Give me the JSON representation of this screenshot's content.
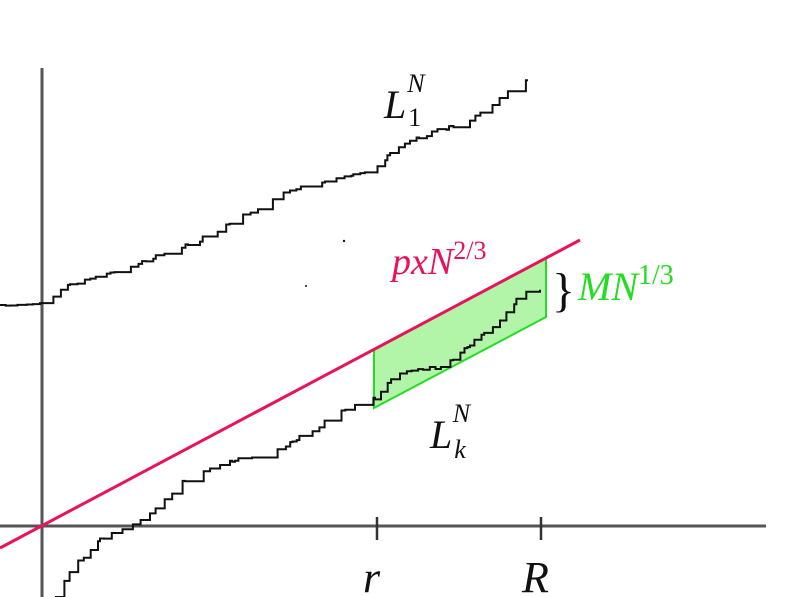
{
  "labels": {
    "top_curve": {
      "base": "L",
      "sub": "1",
      "sup": "N"
    },
    "line": {
      "base": "pxN",
      "sup": "2/3"
    },
    "window": {
      "brace": "}",
      "base": "MN",
      "sup": "1/3"
    },
    "bottom_curve": {
      "base": "L",
      "sub": "k",
      "sup": "N"
    },
    "tick_left": "r",
    "tick_right": "R"
  }
}
